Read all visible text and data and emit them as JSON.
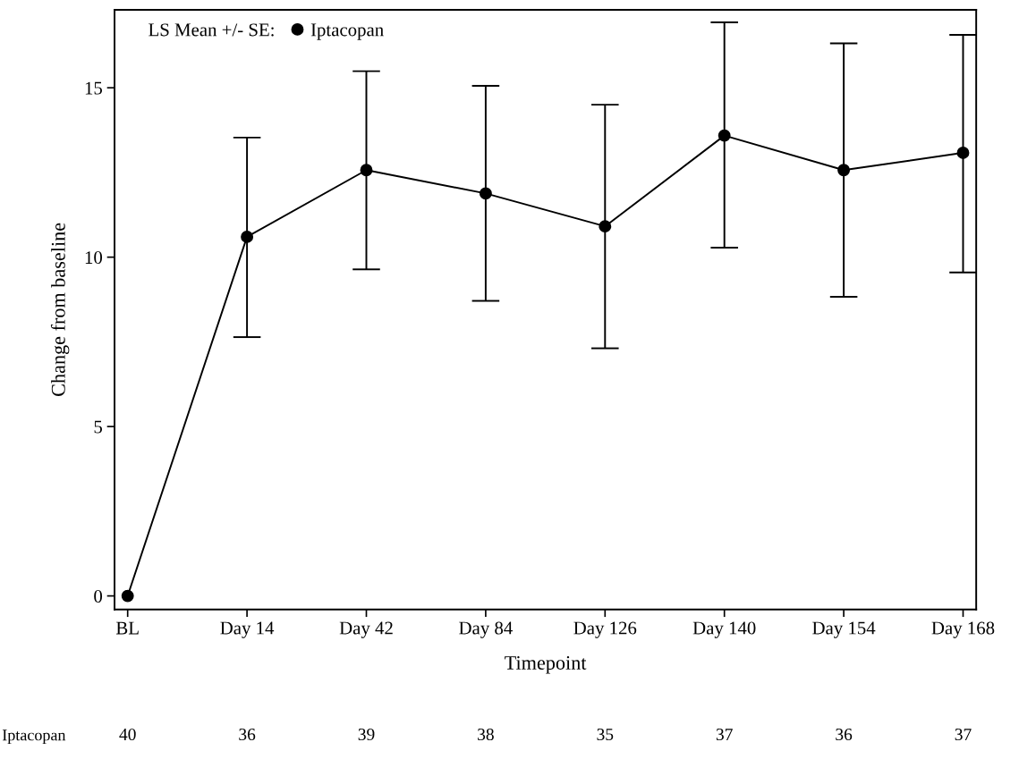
{
  "chart_data": {
    "type": "line",
    "xlabel": "Timepoint",
    "ylabel": "Change from baseline",
    "legend_title": "LS Mean +/- SE:",
    "categories": [
      "BL",
      "Day 14",
      "Day 42",
      "Day 84",
      "Day 126",
      "Day 140",
      "Day 154",
      "Day 168"
    ],
    "series": [
      {
        "name": "Iptacopan",
        "color": "#000000",
        "values": [
          0,
          10.6,
          12.57,
          11.88,
          10.91,
          13.59,
          12.57,
          13.08
        ],
        "errors": [
          null,
          [
            7.64,
            13.53
          ],
          [
            9.64,
            15.49
          ],
          [
            8.71,
            15.06
          ],
          [
            7.31,
            14.5
          ],
          [
            10.28,
            16.93
          ],
          [
            8.83,
            16.31
          ],
          [
            9.55,
            16.56
          ]
        ]
      }
    ],
    "ylim": [
      -0.4,
      17.3
    ],
    "yticks": [
      0,
      5,
      10,
      15
    ],
    "grid": false,
    "legend": "top left",
    "marker": "circle",
    "line_style": "solid",
    "annotations": [
      "Iptacopan",
      "40",
      "36",
      "39",
      "38",
      "35",
      "37",
      "36",
      "37"
    ]
  }
}
